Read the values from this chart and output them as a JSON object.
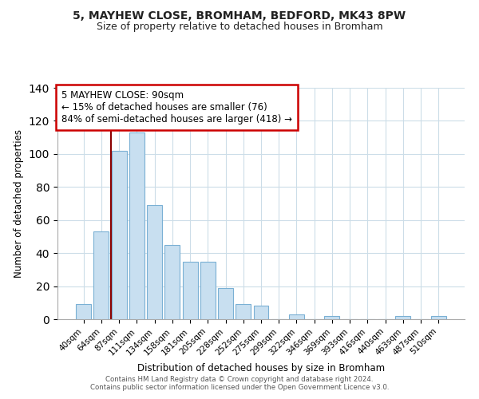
{
  "title": "5, MAYHEW CLOSE, BROMHAM, BEDFORD, MK43 8PW",
  "subtitle": "Size of property relative to detached houses in Bromham",
  "xlabel": "Distribution of detached houses by size in Bromham",
  "ylabel": "Number of detached properties",
  "bar_labels": [
    "40sqm",
    "64sqm",
    "87sqm",
    "111sqm",
    "134sqm",
    "158sqm",
    "181sqm",
    "205sqm",
    "228sqm",
    "252sqm",
    "275sqm",
    "299sqm",
    "322sqm",
    "346sqm",
    "369sqm",
    "393sqm",
    "416sqm",
    "440sqm",
    "463sqm",
    "487sqm",
    "510sqm"
  ],
  "bar_values": [
    9,
    53,
    102,
    113,
    69,
    45,
    35,
    35,
    19,
    9,
    8,
    0,
    3,
    0,
    2,
    0,
    0,
    0,
    2,
    0,
    2
  ],
  "bar_color": "#c8dff0",
  "bar_edge_color": "#7ab0d4",
  "vline_color": "#8b0000",
  "annotation_box_text": "5 MAYHEW CLOSE: 90sqm\n← 15% of detached houses are smaller (76)\n84% of semi-detached houses are larger (418) →",
  "ylim": [
    0,
    140
  ],
  "yticks": [
    0,
    20,
    40,
    60,
    80,
    100,
    120,
    140
  ],
  "footer_text": "Contains HM Land Registry data © Crown copyright and database right 2024.\nContains public sector information licensed under the Open Government Licence v3.0.",
  "background_color": "#ffffff",
  "grid_color": "#ccdde8"
}
